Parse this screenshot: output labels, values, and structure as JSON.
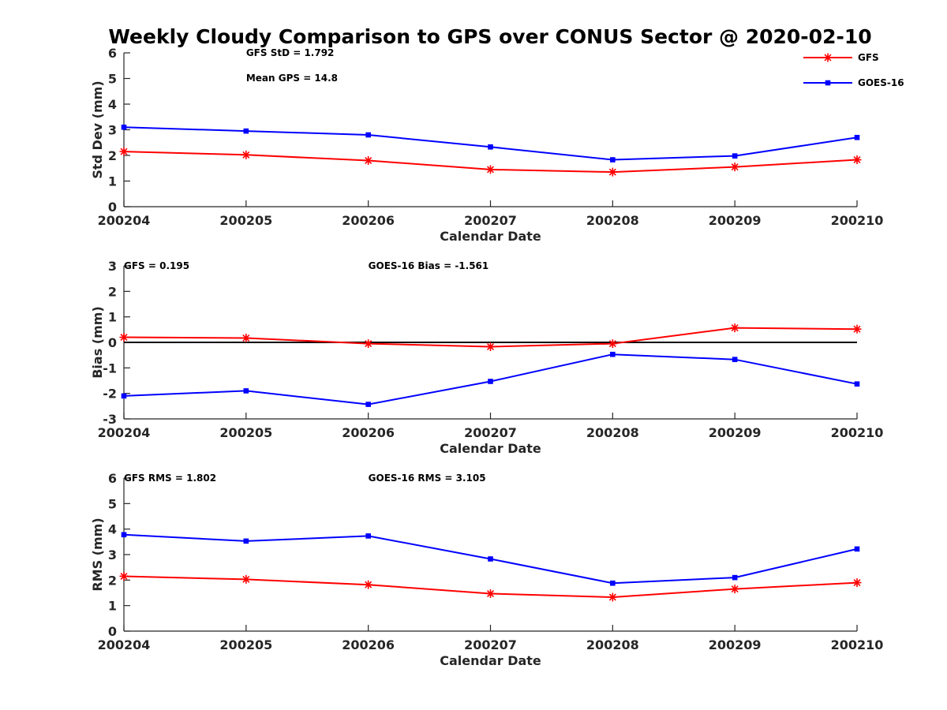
{
  "figure": {
    "title": "Weekly Cloudy Comparison to GPS over CONUS Sector @ 2020-02-10"
  },
  "legend": {
    "placement": "top-right",
    "entries": [
      {
        "name": "GFS",
        "color": "#ff0000",
        "marker": "asterisk"
      },
      {
        "name": "GOES-16",
        "color": "#0000ff",
        "marker": "square"
      }
    ]
  },
  "chart_data": [
    {
      "type": "line",
      "ylabel": "Std Dev (mm)",
      "xlabel": "Calendar Date",
      "x": [
        "200204",
        "200205",
        "200206",
        "200207",
        "200208",
        "200209",
        "200210"
      ],
      "ylim": [
        0,
        6
      ],
      "yticks": [
        0,
        1,
        2,
        3,
        4,
        5,
        6
      ],
      "zero_line": false,
      "grid": false,
      "annotations": [
        {
          "text": "GFS StD = 1.792",
          "anchor_x": 1,
          "row": 0
        },
        {
          "text": "Mean GPS = 14.8",
          "anchor_x": 1,
          "row": 1
        }
      ],
      "series": [
        {
          "name": "GFS",
          "color": "#ff0000",
          "marker": "asterisk",
          "values": [
            2.15,
            2.02,
            1.8,
            1.45,
            1.35,
            1.55,
            1.83
          ]
        },
        {
          "name": "GOES-16",
          "color": "#0000ff",
          "marker": "square",
          "values": [
            3.1,
            2.95,
            2.8,
            2.33,
            1.83,
            1.98,
            2.7
          ]
        }
      ]
    },
    {
      "type": "line",
      "ylabel": "Bias (mm)",
      "xlabel": "Calendar Date",
      "x": [
        "200204",
        "200205",
        "200206",
        "200207",
        "200208",
        "200209",
        "200210"
      ],
      "ylim": [
        -3,
        3
      ],
      "yticks": [
        -3,
        -2,
        -1,
        0,
        1,
        2,
        3
      ],
      "zero_line": true,
      "grid": false,
      "annotations": [
        {
          "text": "GFS = 0.195",
          "anchor_x": 0,
          "row": 0
        },
        {
          "text": "GOES-16 Bias  = -1.561",
          "anchor_x": 2,
          "row": 0
        }
      ],
      "series": [
        {
          "name": "GFS",
          "color": "#ff0000",
          "marker": "asterisk",
          "values": [
            0.2,
            0.17,
            -0.05,
            -0.17,
            -0.05,
            0.57,
            0.52
          ]
        },
        {
          "name": "GOES-16",
          "color": "#0000ff",
          "marker": "square",
          "values": [
            -2.1,
            -1.9,
            -2.43,
            -1.53,
            -0.47,
            -0.67,
            -1.63
          ]
        }
      ]
    },
    {
      "type": "line",
      "ylabel": "RMS (mm)",
      "xlabel": "Calendar Date",
      "x": [
        "200204",
        "200205",
        "200206",
        "200207",
        "200208",
        "200209",
        "200210"
      ],
      "ylim": [
        0,
        6
      ],
      "yticks": [
        0,
        1,
        2,
        3,
        4,
        5,
        6
      ],
      "zero_line": false,
      "grid": false,
      "annotations": [
        {
          "text": "GFS RMS = 1.802",
          "anchor_x": 0,
          "row": 0
        },
        {
          "text": "GOES-16 RMS = 3.105",
          "anchor_x": 2,
          "row": 0
        }
      ],
      "series": [
        {
          "name": "GFS",
          "color": "#ff0000",
          "marker": "asterisk",
          "values": [
            2.15,
            2.03,
            1.82,
            1.47,
            1.33,
            1.65,
            1.9
          ]
        },
        {
          "name": "GOES-16",
          "color": "#0000ff",
          "marker": "square",
          "values": [
            3.78,
            3.53,
            3.73,
            2.83,
            1.88,
            2.1,
            3.22
          ]
        }
      ]
    }
  ]
}
